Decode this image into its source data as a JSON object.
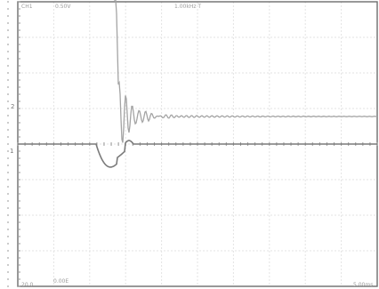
{
  "readouts": {
    "top_left_a": "CH1",
    "top_left_b": "0.50V",
    "top_center": "1.00kHz  T",
    "bottom_left_a": "20.0",
    "bottom_left_b": "0.00E",
    "bottom_right": "5.00ms"
  },
  "markers": {
    "ref_marker": "1",
    "upper_marker": "2"
  }
}
